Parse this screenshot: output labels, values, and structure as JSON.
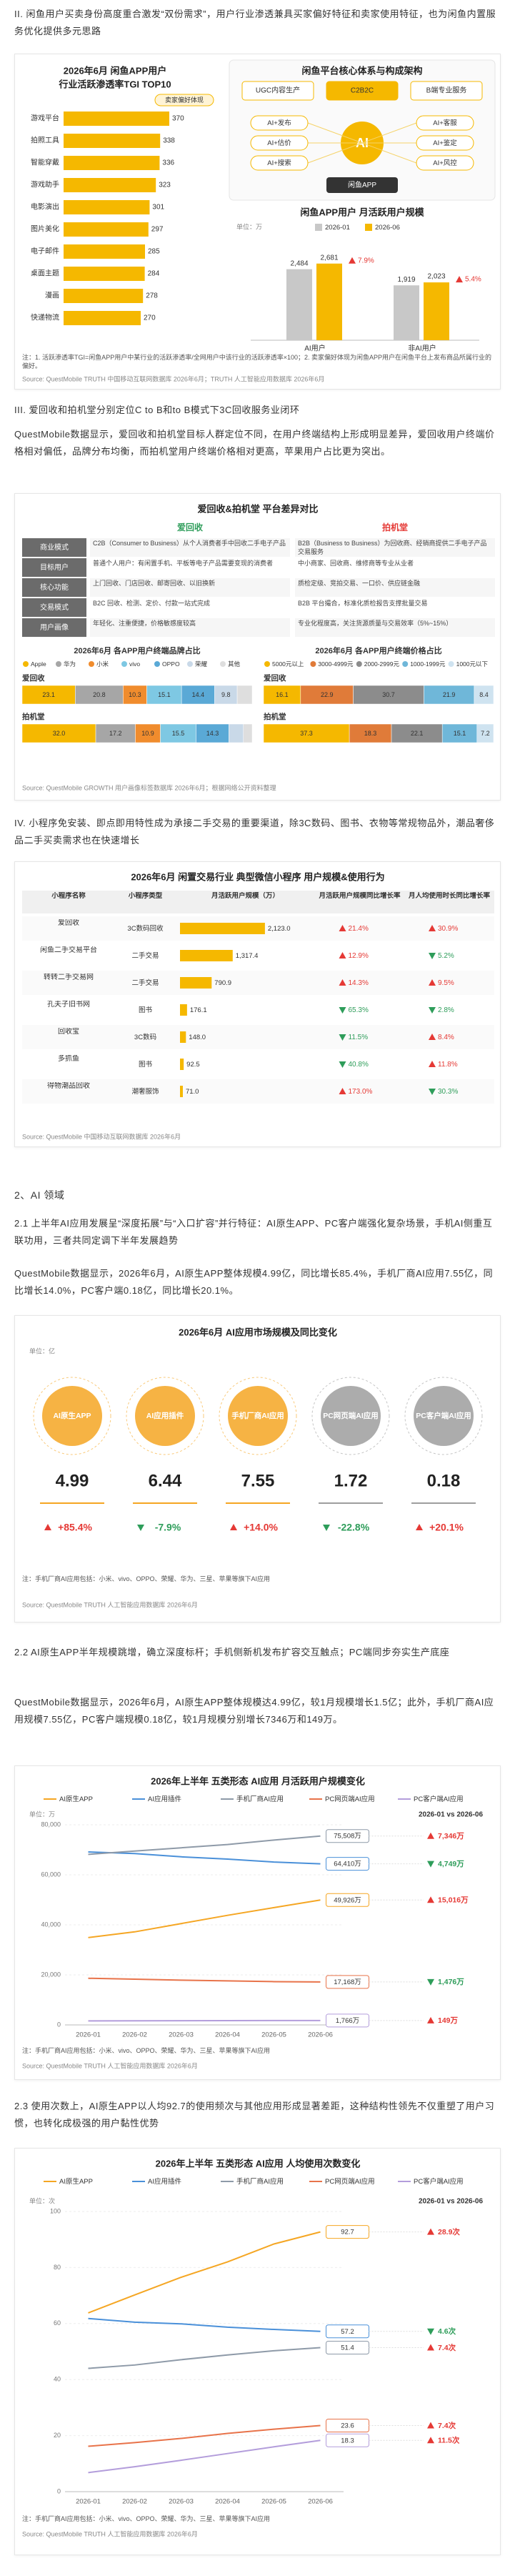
{
  "section_ii": {
    "heading": "II. 闲鱼用户买卖身份高度重合激发“双份需求”，用户行业渗透兼具买家偏好特征和卖家使用特征，也为闲鱼内置服务优化提供多元思路"
  },
  "figure1": {
    "tgi": {
      "type": "bar",
      "title": "2026年6月 闲鱼APP用户",
      "subtitle": "行业活跃渗透率TGI TOP10",
      "legend": "卖家偏好体现",
      "categories": [
        "游戏平台",
        "拍照工具",
        "智能穿戴",
        "游戏助手",
        "电影演出",
        "图片美化",
        "电子邮件",
        "桌面主题",
        "漫画",
        "快递物流"
      ],
      "values": [
        370,
        338,
        336,
        323,
        301,
        297,
        285,
        284,
        278,
        270
      ],
      "color": "#f5b800",
      "xlim": [
        0,
        400
      ]
    },
    "architecture": {
      "title": "闲鱼平台核心体系与构成架构",
      "top_nodes": [
        "UGC内容生产",
        "C2B2C",
        "B端专业服务"
      ],
      "core": "AI",
      "ring_nodes": [
        "AI+发布",
        "AI+估价",
        "AI+搜索",
        "AI+客服",
        "AI+鉴定",
        "AI+风控"
      ],
      "base": "闲鱼APP"
    },
    "mau": {
      "type": "bar",
      "title": "闲鱼APP用户 月活跃用户规模",
      "unit": "单位：万",
      "categories": [
        "AI用户",
        "非AI用户"
      ],
      "series": [
        {
          "name": "2026-01",
          "color": "#c8c8c8",
          "values": [
            2484,
            1919
          ],
          "value_labels": [
            "2,484",
            "1,919"
          ]
        },
        {
          "name": "2026-06",
          "color": "#f5b800",
          "values": [
            2681,
            2023
          ],
          "value_labels": [
            "2,681",
            "2,023"
          ]
        }
      ],
      "growth": [
        7.9,
        5.4
      ],
      "growth_labels": [
        "7.9%",
        "5.4%"
      ],
      "ylim": [
        0,
        3000
      ]
    },
    "note": "注：1. 活跃渗透率TGI=闲鱼APP用户中某行业的活跃渗透率/全网用户中该行业的活跃渗透率×100；2. 卖家偏好体现为闲鱼APP用户在闲鱼平台上发布商品所属行业的偏好。",
    "source": "Source: QuestMobile TRUTH 中国移动互联网数据库 2026年6月；TRUTH 人工智能应用数据库 2026年6月"
  },
  "section_iii": {
    "heading": "III. 爱回收和拍机堂分别定位C to B和to B模式下3C回收服务业闭环",
    "paragraph": "QuestMobile数据显示，爱回收和拍机堂目标人群定位不同，在用户终端结构上形成明显差异，爱回收用户终端价格相对偏低，品牌分布均衡，而拍机堂用户终端价格相对更高，苹果用户占比更为突出。"
  },
  "figure2": {
    "title": "爱回收&拍机堂 平台差异对比",
    "columns": [
      "爱回收",
      "拍机堂"
    ],
    "rows": [
      {
        "label": "商业模式",
        "cells": [
          "C2B（Consumer to Business）从个人消费者手中回收二手电子产品",
          "B2B（Business to Business）为回收商、经销商提供二手电子产品交易服务"
        ]
      },
      {
        "label": "目标用户",
        "cells": [
          "普通个人用户：有闲置手机、平板等电子产品需要变现的消费者",
          "中小商家、回收商、维修商等专业从业者"
        ]
      },
      {
        "label": "核心功能",
        "cells": [
          "上门回收、门店回收、邮寄回收、以旧换新",
          "质检定级、竞拍交易、一口价、供应链金融"
        ]
      },
      {
        "label": "交易模式",
        "cells": [
          "B2C 回收、检测、定价、付款一站式完成",
          "B2B 平台撮合，标准化质检报告支撑批量交易"
        ]
      },
      {
        "label": "用户画像",
        "cells": [
          "年轻化、注重便捷，价格敏感度较高",
          "专业化程度高，关注货源质量与交易效率（5%~15%）"
        ]
      }
    ],
    "brand": {
      "type": "stacked-bar",
      "title": "2026年6月 各APP用户终端品牌占比",
      "categories": [
        "爱回收",
        "拍机堂"
      ],
      "series": [
        {
          "name": "Apple",
          "color": "#f5b800",
          "values": [
            23.1,
            32.0
          ],
          "value_labels": [
            "23.1",
            "32.0"
          ]
        },
        {
          "name": "华为",
          "color": "#a6a6a6",
          "values": [
            20.8,
            17.2
          ]
        },
        {
          "name": "小米",
          "color": "#f08c2d",
          "values": [
            10.3,
            10.9
          ]
        },
        {
          "name": "vivo",
          "color": "#7ec8e3",
          "values": [
            15.1,
            15.5
          ]
        },
        {
          "name": "OPPO",
          "color": "#5aa9d6",
          "values": [
            14.4,
            14.3
          ]
        },
        {
          "name": "荣耀",
          "color": "#c9d9e8",
          "values": [
            9.8,
            6.3
          ]
        },
        {
          "name": "其他",
          "color": "#dedede",
          "values": [
            6.5,
            3.8
          ]
        }
      ]
    },
    "price": {
      "type": "stacked-bar",
      "title": "2026年6月 各APP用户终端价格占比",
      "categories": [
        "爱回收",
        "拍机堂"
      ],
      "series": [
        {
          "name": "5000元以上",
          "color": "#f5b800",
          "values": [
            16.1,
            37.3
          ]
        },
        {
          "name": "3000-4999元",
          "color": "#e07b39",
          "values": [
            22.9,
            18.3
          ]
        },
        {
          "name": "2000-2999元",
          "color": "#8c8c8c",
          "values": [
            30.7,
            22.1
          ]
        },
        {
          "name": "1000-1999元",
          "color": "#6fb7d9",
          "values": [
            21.9,
            15.1
          ]
        },
        {
          "name": "1000元以下",
          "color": "#cfe3f0",
          "values": [
            8.4,
            7.2
          ]
        }
      ]
    },
    "source": "Source: QuestMobile GROWTH 用户画像标签数据库 2026年6月；根据网络公开资料整理"
  },
  "section_iv": {
    "heading": "IV. 小程序免安装、即点即用特性成为承接二手交易的重要渠道，除3C数码、图书、衣物等常规物品外，潮品奢侈品二手买卖需求也在快速增长"
  },
  "figure3": {
    "title": "2026年6月 闲置交易行业 典型微信小程序 用户规模&使用行为",
    "headers": [
      "小程序名称",
      "小程序类型",
      "月活跃用户规模（万）",
      "月活跃用户规模同比增长率",
      "月人均使用时长同比增长率"
    ],
    "names": [
      "爱回收",
      "闲鱼二手交易平台",
      "转转二手交易网",
      "孔夫子旧书网",
      "回收宝",
      "多抓鱼",
      "得物潮品回收"
    ],
    "types": [
      "3C数码回收",
      "二手交易",
      "二手交易",
      "图书",
      "3C数码",
      "图书",
      "潮奢服饰"
    ],
    "mau": [
      2123.0,
      1317.4,
      790.9,
      176.1,
      148.0,
      92.5,
      71.0
    ],
    "mau_labels": [
      "2,123.0",
      "1,317.4",
      "790.9",
      "176.1",
      "148.0",
      "92.5",
      "71.0"
    ],
    "mau_color": "#f5b800",
    "xlim": [
      0,
      2500
    ],
    "growth": [
      21.4,
      12.9,
      14.3,
      -65.3,
      -11.5,
      -40.8,
      173.0
    ],
    "growth_labels": [
      "21.4%",
      "12.9%",
      "14.3%",
      "65.3%",
      "11.5%",
      "40.8%",
      "173.0%"
    ],
    "duration": [
      30.9,
      -5.2,
      9.5,
      -2.8,
      8.4,
      11.8,
      -30.3
    ],
    "duration_labels": [
      "30.9%",
      "5.2%",
      "9.5%",
      "2.8%",
      "8.4%",
      "11.8%",
      "30.3%"
    ],
    "source": "Source: QuestMobile 中国移动互联网数据库 2026年6月"
  },
  "section_ai": {
    "heading": "2、AI 领域",
    "h21": "2.1 上半年AI应用发展呈“深度拓展”与“入口扩容”并行特征：AI原生APP、PC客户端强化复杂场景，手机AI侧重互联功用，三者共同定调下半年发展趋势",
    "p21": "QuestMobile数据显示，2026年6月，AI原生APP整体规模4.99亿，同比增长85.4%，手机厂商AI应用7.55亿，同比增长14.0%，PC客户端0.18亿，同比增长20.1%。",
    "h22": "2.2 AI原生APP半年规模跳增，确立深度标杆；手机侧新机发布扩容交互触点；PC端同步夯实生产底座",
    "p22": "QuestMobile数据显示，2026年6月，AI原生APP整体规模达4.99亿，较1月规模增长1.5亿；此外，手机厂商AI应用规模7.55亿，PC客户端规模0.18亿，较1月规模分别增长7346万和149万。",
    "h23": "2.3 使用次数上，AI原生APP以人均92.7的使用频次与其他应用形成显著差距，这种结构性领先不仅重塑了用户习惯，也转化成极强的用户黏性优势"
  },
  "figure4": {
    "type": "circles",
    "title": "2026年6月 AI应用市场规模及同比变化",
    "unit": "单位：亿",
    "categories": [
      "AI原生APP",
      "AI应用插件",
      "手机厂商AI应用",
      "PC网页端AI应用",
      "PC客户端AI应用"
    ],
    "values": [
      4.99,
      6.44,
      7.55,
      1.72,
      0.18
    ],
    "colors": [
      "#f5a623",
      "#f5a623",
      "#f5a623",
      "#9e9e9e",
      "#9e9e9e"
    ],
    "changes": [
      85.4,
      -7.9,
      14.0,
      -22.8,
      20.1
    ],
    "change_labels": [
      "+85.4%",
      "-7.9%",
      "+14.0%",
      "-22.8%",
      "+20.1%"
    ],
    "note": "注：手机厂商AI应用包括：小米、vivo、OPPO、荣耀、华为、三星、苹果等旗下AI应用",
    "source": "Source: QuestMobile TRUTH 人工智能应用数据库 2026年6月"
  },
  "figure5": {
    "type": "line",
    "title": "2026年上半年 五类形态 AI应用 月活跃用户规模变化",
    "unit": "单位：万",
    "compare": "2026-01 vs 2026-06",
    "x": [
      "2026-01",
      "2026-02",
      "2026-03",
      "2026-04",
      "2026-05",
      "2026-06"
    ],
    "ylim": [
      0,
      80000
    ],
    "yticks": [
      0,
      {
        "value": 20000,
        "label": "20,000"
      },
      {
        "value": 40000,
        "label": "40,000"
      },
      {
        "value": 60000,
        "label": "60,000"
      },
      {
        "value": 80000,
        "label": "80,000"
      }
    ],
    "series": [
      {
        "name": "AI原生APP",
        "color": "#f5a623",
        "values": [
          34910,
          37200,
          40500,
          43800,
          46900,
          49926
        ],
        "value_labels": [
          null,
          null,
          null,
          null,
          null,
          "49,926万"
        ],
        "change": 15016,
        "change_label": "15,016万"
      },
      {
        "name": "AI应用插件",
        "color": "#4a90d9",
        "values": [
          69159,
          68500,
          67200,
          66300,
          65100,
          64410
        ],
        "value_labels": [
          null,
          null,
          null,
          null,
          null,
          "64,410万"
        ],
        "change": -4749,
        "change_label": "4,749万"
      },
      {
        "name": "手机厂商AI应用",
        "color": "#8e9aa8",
        "values": [
          68162,
          69500,
          70800,
          72100,
          73900,
          75508
        ],
        "value_labels": [
          null,
          null,
          null,
          null,
          null,
          "75,508万"
        ],
        "change": 7346,
        "change_label": "7,346万"
      },
      {
        "name": "PC网页端AI应用",
        "color": "#e8734a",
        "values": [
          18644,
          18300,
          17900,
          17600,
          17300,
          17168
        ],
        "value_labels": [
          null,
          null,
          null,
          null,
          null,
          "17,168万"
        ],
        "change": -1476,
        "change_label": "1,476万"
      },
      {
        "name": "PC客户端AI应用",
        "color": "#b39ddb",
        "values": [
          1617,
          1640,
          1680,
          1700,
          1740,
          1766
        ],
        "value_labels": [
          null,
          null,
          null,
          null,
          null,
          "1,766万"
        ],
        "change": 149,
        "change_label": "149万"
      }
    ],
    "note": "注：手机厂商AI应用包括：小米、vivo、OPPO、荣耀、华为、三星、苹果等旗下AI应用",
    "source": "Source: QuestMobile TRUTH 人工智能应用数据库 2026年6月"
  },
  "figure6": {
    "type": "line",
    "title": "2026年上半年 五类形态 AI应用 人均使用次数变化",
    "unit": "单位：次",
    "compare": "2026-01 vs 2026-06",
    "x": [
      "2026-01",
      "2026-02",
      "2026-03",
      "2026-04",
      "2026-05",
      "2026-06"
    ],
    "ylim": [
      0,
      100
    ],
    "yticks": [
      0,
      20,
      40,
      60,
      80,
      100
    ],
    "series": [
      {
        "name": "AI原生APP",
        "color": "#f5a623",
        "values": [
          63.8,
          70.2,
          76.5,
          82.0,
          88.4,
          92.7
        ],
        "change": 28.9,
        "change_label": "28.9次"
      },
      {
        "name": "AI应用插件",
        "color": "#4a90d9",
        "values": [
          61.8,
          60.5,
          59.9,
          58.7,
          57.9,
          57.2
        ],
        "change": -4.6,
        "change_label": "4.6次"
      },
      {
        "name": "手机厂商AI应用",
        "color": "#8e9aa8",
        "values": [
          44.0,
          45.2,
          47.1,
          48.8,
          50.3,
          51.4
        ],
        "change": 7.4,
        "change_label": "7.4次"
      },
      {
        "name": "PC网页端AI应用",
        "color": "#e8734a",
        "values": [
          16.2,
          17.5,
          19.0,
          20.8,
          22.3,
          23.6
        ],
        "change": 7.4,
        "change_label": "7.4次"
      },
      {
        "name": "PC客户端AI应用",
        "color": "#b39ddb",
        "values": [
          6.8,
          8.9,
          11.2,
          13.6,
          16.0,
          18.3
        ],
        "change": 11.5,
        "change_label": "11.5次"
      }
    ],
    "note": "注：手机厂商AI应用包括：小米、vivo、OPPO、荣耀、华为、三星、苹果等旗下AI应用",
    "source": "Source: QuestMobile TRUTH 人工智能应用数据库 2026年6月"
  }
}
